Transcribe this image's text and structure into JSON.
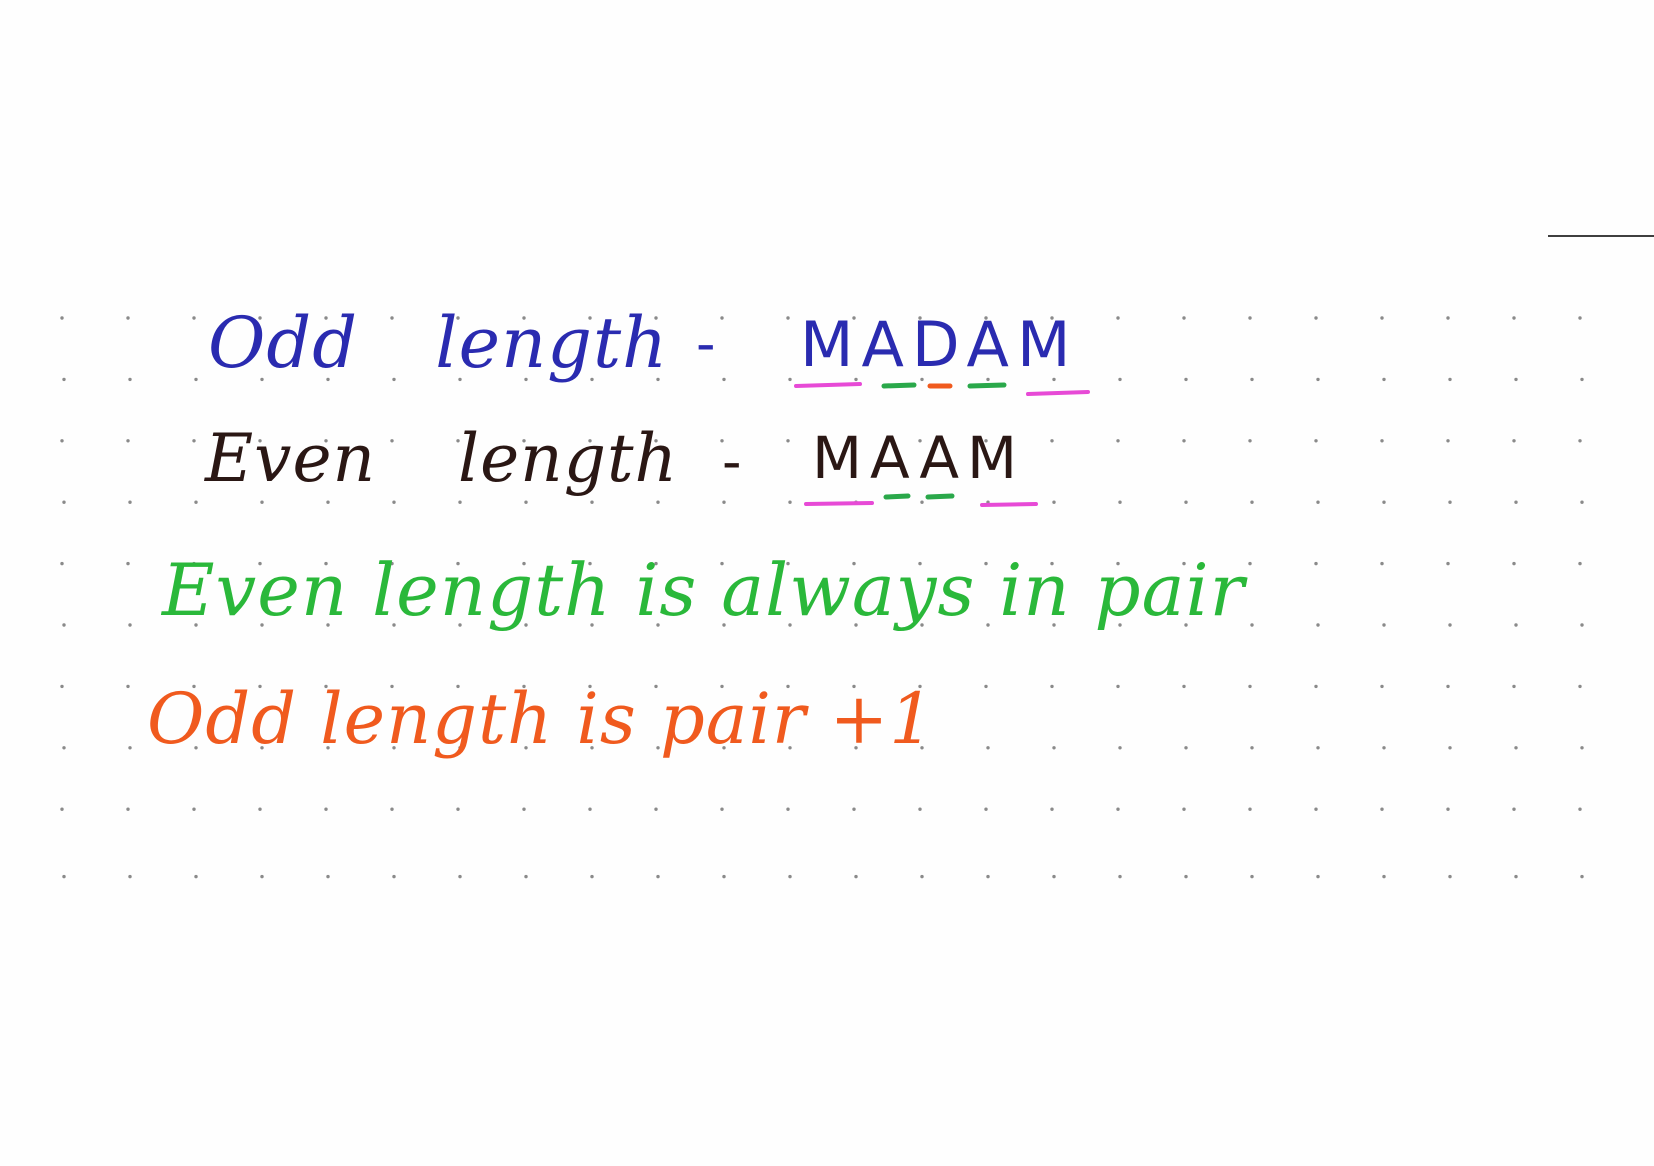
{
  "lines": [
    {
      "prefix": "Odd",
      "middle": "length",
      "separator": "-",
      "example": "MADAM",
      "color": "#2a2bb0"
    },
    {
      "prefix": "Even",
      "middle": "length",
      "separator": "-",
      "example": "MAAM",
      "color": "#2a1714"
    }
  ],
  "rules": [
    {
      "text": "Even length is always in pair",
      "color": "#2ab83a"
    },
    {
      "text": "Odd length is pair +1",
      "color": "#f05a1e"
    }
  ],
  "underline_colors": {
    "outer_pair": "#e74ad6",
    "inner_pair": "#2aa84a",
    "center": "#f05a1e"
  }
}
